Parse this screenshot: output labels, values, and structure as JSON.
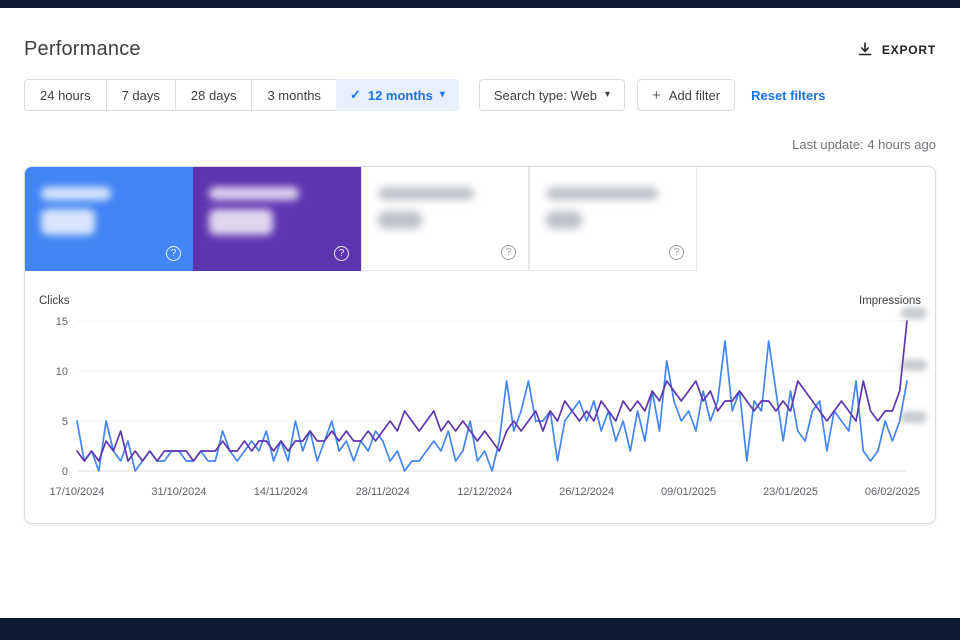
{
  "header": {
    "title": "Performance",
    "export_label": "EXPORT",
    "last_update": "Last update: 4 hours ago"
  },
  "icons": {
    "check": "✓",
    "caret": "▾",
    "plus": "+",
    "help": "?",
    "download": "download-arrow"
  },
  "filters": {
    "time_tabs": [
      {
        "label": "24 hours",
        "selected": false
      },
      {
        "label": "7 days",
        "selected": false
      },
      {
        "label": "28 days",
        "selected": false
      },
      {
        "label": "3 months",
        "selected": false
      },
      {
        "label": "12 months",
        "selected": true
      }
    ],
    "search_type_label": "Search type: Web",
    "add_filter_label": "Add filter",
    "reset_filters_label": "Reset filters"
  },
  "metrics": [
    {
      "name": "total-clicks-tile",
      "color": "#4285f4",
      "blurred": true
    },
    {
      "name": "total-impressions-tile",
      "color": "#5e35b1",
      "blurred": true
    },
    {
      "name": "average-ctr-tile",
      "color": "#ffffff",
      "blurred": true
    },
    {
      "name": "average-position-tile",
      "color": "#ffffff",
      "blurred": true
    }
  ],
  "chart_data": {
    "type": "line",
    "title": "",
    "ylabel_left": "Clicks",
    "ylabel_right": "Impressions",
    "grid": "horizontal-light",
    "legend_position": "none",
    "ylim": [
      0,
      15
    ],
    "y_ticks": [
      0,
      5,
      10,
      15
    ],
    "x_tick_labels": [
      "17/10/2024",
      "31/10/2024",
      "14/11/2024",
      "28/11/2024",
      "12/12/2024",
      "26/12/2024",
      "09/01/2025",
      "23/01/2025",
      "06/02/2025"
    ],
    "x_tick_interval_days": 14,
    "series": [
      {
        "name": "Clicks",
        "color": "#4285f4",
        "values": [
          5,
          1,
          2,
          0,
          5,
          2,
          1,
          3,
          0,
          1,
          2,
          1,
          1,
          2,
          2,
          1,
          1,
          2,
          1,
          1,
          4,
          2,
          1,
          2,
          3,
          2,
          4,
          1,
          3,
          1,
          5,
          2,
          4,
          1,
          3,
          5,
          2,
          3,
          1,
          3,
          2,
          4,
          3,
          1,
          2,
          0,
          1,
          1,
          2,
          3,
          2,
          4,
          1,
          2,
          5,
          1,
          2,
          0,
          3,
          9,
          4,
          6,
          9,
          5,
          5,
          6,
          1,
          5,
          6,
          7,
          5,
          7,
          4,
          6,
          3,
          5,
          2,
          6,
          3,
          8,
          4,
          11,
          7,
          5,
          6,
          4,
          8,
          5,
          7,
          13,
          6,
          8,
          1,
          7,
          6,
          13,
          8,
          3,
          8,
          4,
          3,
          6,
          7,
          2,
          6,
          5,
          4,
          9,
          2,
          1,
          2,
          5,
          3,
          5,
          9
        ]
      },
      {
        "name": "Impressions",
        "color": "#5e35b1",
        "values": [
          2,
          1,
          2,
          1,
          3,
          2,
          4,
          1,
          2,
          1,
          2,
          1,
          2,
          2,
          2,
          2,
          1,
          2,
          2,
          2,
          3,
          2,
          2,
          3,
          2,
          3,
          3,
          2,
          3,
          2,
          3,
          3,
          4,
          3,
          3,
          4,
          3,
          4,
          3,
          3,
          4,
          3,
          4,
          5,
          4,
          6,
          5,
          4,
          5,
          6,
          4,
          5,
          4,
          5,
          4,
          3,
          4,
          3,
          2,
          4,
          5,
          4,
          5,
          6,
          4,
          6,
          5,
          7,
          6,
          5,
          6,
          5,
          7,
          6,
          5,
          7,
          6,
          7,
          6,
          8,
          7,
          9,
          8,
          7,
          8,
          9,
          7,
          8,
          6,
          7,
          7,
          8,
          7,
          6,
          7,
          7,
          6,
          7,
          6,
          9,
          8,
          7,
          6,
          5,
          6,
          7,
          6,
          5,
          9,
          6,
          5,
          6,
          6,
          8,
          15
        ]
      }
    ]
  }
}
